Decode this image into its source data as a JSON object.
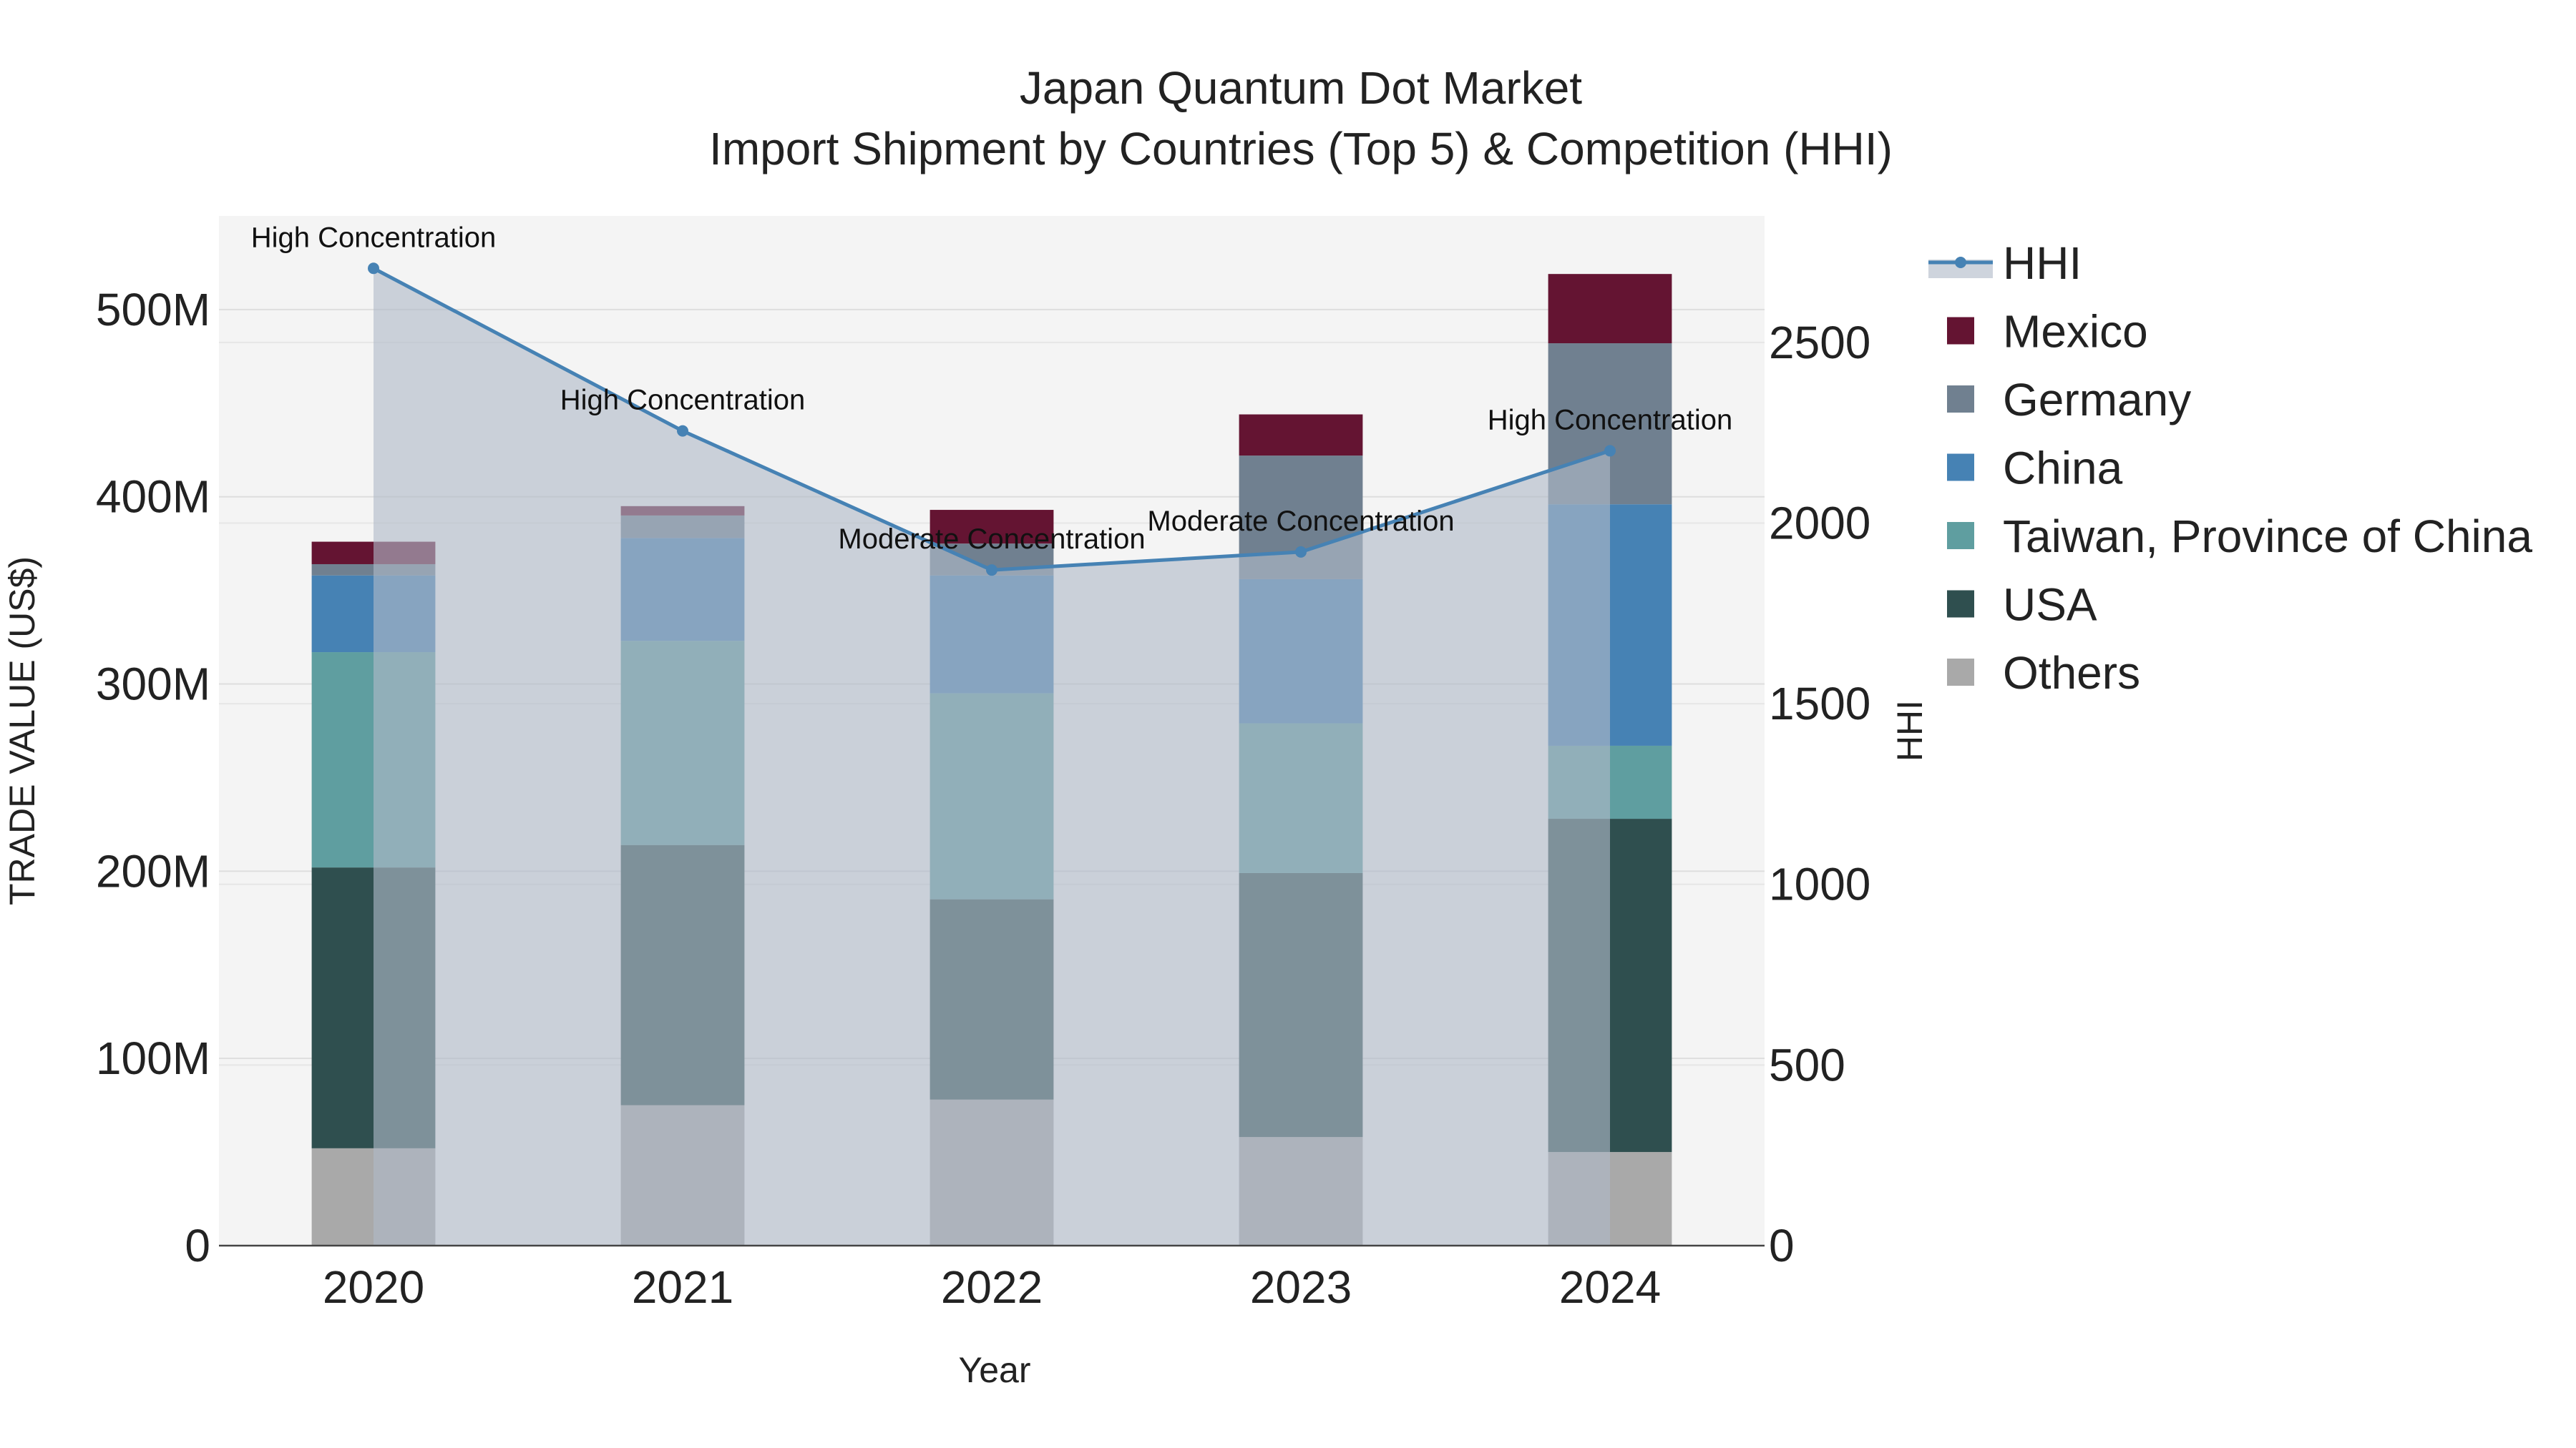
{
  "chart_data": {
    "type": "bar",
    "title": "Japan Quantum Dot Market",
    "subtitle": "Import Shipment by Countries (Top 5) & Competition (HHI)",
    "xlabel": "Year",
    "ylabel": "TRADE VALUE (US$)",
    "y2label": "HHI",
    "categories": [
      "2020",
      "2021",
      "2022",
      "2023",
      "2024"
    ],
    "ylim": [
      0,
      550000000
    ],
    "y2lim": [
      0,
      2850
    ],
    "yticks": [
      {
        "value": 0,
        "label": "0"
      },
      {
        "value": 100000000,
        "label": "100M"
      },
      {
        "value": 200000000,
        "label": "200M"
      },
      {
        "value": 300000000,
        "label": "300M"
      },
      {
        "value": 400000000,
        "label": "400M"
      },
      {
        "value": 500000000,
        "label": "500M"
      }
    ],
    "y2ticks": [
      {
        "value": 0,
        "label": "0"
      },
      {
        "value": 500,
        "label": "500"
      },
      {
        "value": 1000,
        "label": "1000"
      },
      {
        "value": 1500,
        "label": "1500"
      },
      {
        "value": 2000,
        "label": "2000"
      },
      {
        "value": 2500,
        "label": "2500"
      }
    ],
    "series": [
      {
        "name": "Others",
        "color": "#A9A9A9",
        "values": [
          52000000,
          75000000,
          78000000,
          58000000,
          50000000
        ]
      },
      {
        "name": "USA",
        "color": "#2F4F4F",
        "values": [
          150000000,
          139000000,
          107000000,
          141000000,
          178000000
        ]
      },
      {
        "name": "Taiwan, Province of China",
        "color": "#5F9EA0",
        "values": [
          115000000,
          109000000,
          110000000,
          80000000,
          39000000
        ]
      },
      {
        "name": "China",
        "color": "#4682B4",
        "values": [
          41000000,
          55000000,
          63000000,
          77000000,
          129000000
        ]
      },
      {
        "name": "Germany",
        "color": "#708090",
        "values": [
          6000000,
          12000000,
          17000000,
          66000000,
          86000000
        ]
      },
      {
        "name": "Mexico",
        "color": "#641432",
        "values": [
          12000000,
          5000000,
          18000000,
          22000000,
          37000000
        ]
      }
    ],
    "hhi": {
      "name": "HHI",
      "color": "#4682B4",
      "values": [
        2705,
        2255,
        1870,
        1920,
        2200
      ],
      "annotations": [
        "High Concentration",
        "High Concentration",
        "Moderate Concentration",
        "Moderate Concentration",
        "High Concentration"
      ]
    },
    "legend": {
      "placement": "right",
      "items": [
        "HHI",
        "Mexico",
        "Germany",
        "China",
        "Taiwan, Province of China",
        "USA",
        "Others"
      ]
    }
  }
}
